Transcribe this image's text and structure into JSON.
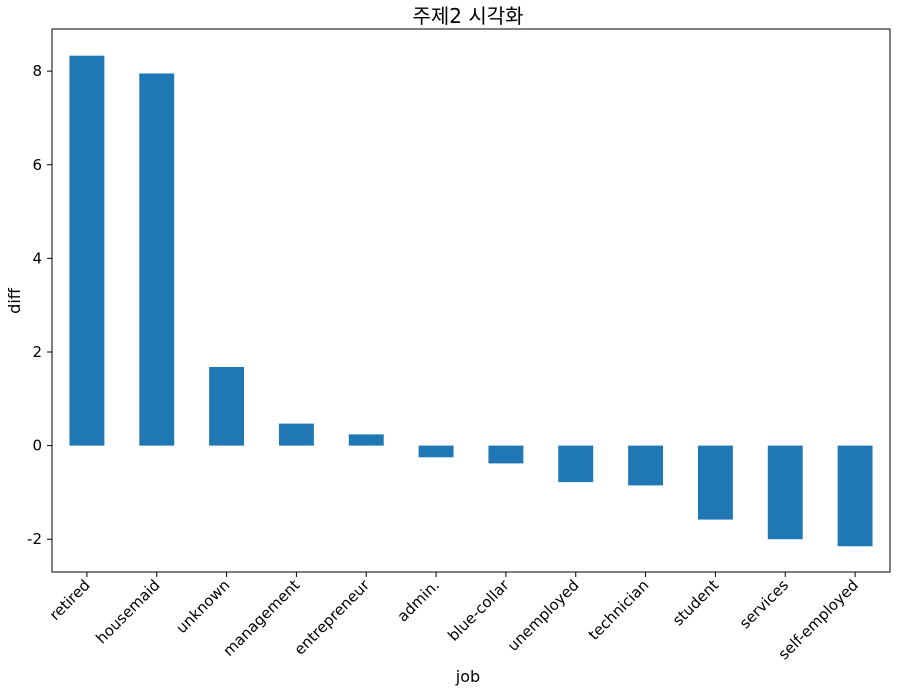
{
  "chart_data": {
    "type": "bar",
    "title": "주제2 시각화",
    "xlabel": "job",
    "ylabel": "diff",
    "categories": [
      "retired",
      "housemaid",
      "unknown",
      "management",
      "entrepreneur",
      "admin.",
      "blue-collar",
      "unemployed",
      "technician",
      "student",
      "services",
      "self-employed"
    ],
    "values": [
      8.33,
      7.95,
      1.68,
      0.47,
      0.24,
      -0.25,
      -0.38,
      -0.78,
      -0.85,
      -1.58,
      -2.0,
      -2.15
    ],
    "yticks": [
      -2,
      0,
      2,
      4,
      6,
      8
    ],
    "ytick_labels": [
      "-2",
      "0",
      "2",
      "4",
      "6",
      "8"
    ],
    "ylim": [
      -2.7,
      8.9
    ],
    "grid": false,
    "legend": "none",
    "bar_color": "#1f77b4"
  }
}
